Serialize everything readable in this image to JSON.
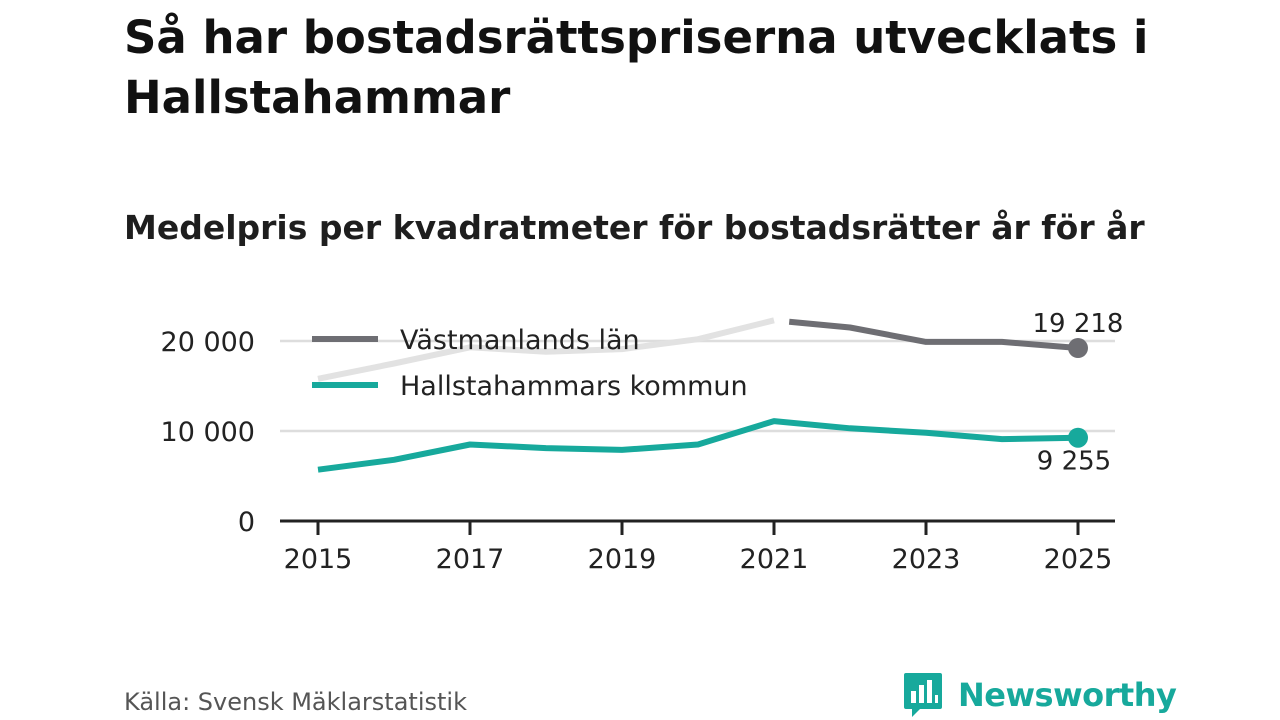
{
  "title": "Så har bostadsrättspriserna utvecklats i Hallstahammar",
  "subtitle": "Medelpris per kvadratmeter för bostadsrätter år för år",
  "source": "Källa: Svensk Mäklarstatistik",
  "brand": "Newsworthy",
  "colors": {
    "lan": "#6e6e73",
    "lan_faded": "#e2e2e2",
    "kommun": "#17a99c",
    "grid": "#dddddd",
    "axis": "#222222",
    "text": "#222222"
  },
  "chart_data": {
    "type": "line",
    "x": [
      2015,
      2016,
      2017,
      2018,
      2019,
      2020,
      2021,
      2022,
      2023,
      2024,
      2025
    ],
    "xticks": [
      2015,
      2017,
      2019,
      2021,
      2023,
      2025
    ],
    "xtick_labels": [
      "2015",
      "2017",
      "2019",
      "2021",
      "2023",
      "2025"
    ],
    "yticks": [
      0,
      10000,
      20000
    ],
    "ytick_labels": [
      "0",
      "10 000",
      "20 000"
    ],
    "ylim": [
      0,
      24000
    ],
    "xlim": [
      2015,
      2025
    ],
    "series": [
      {
        "name": "Västmanlands län",
        "values": [
          15800,
          17500,
          19300,
          18800,
          19100,
          20200,
          22300,
          21500,
          19900,
          19900,
          19218
        ],
        "faded_until": 2021,
        "end_label": "19 218"
      },
      {
        "name": "Hallstahammars kommun",
        "values": [
          5700,
          6800,
          8500,
          8100,
          7900,
          8500,
          11100,
          10300,
          9800,
          9100,
          9255
        ],
        "end_label": "9 255"
      }
    ],
    "legend": [
      "Västmanlands län",
      "Hallstahammars kommun"
    ],
    "grid": true
  }
}
